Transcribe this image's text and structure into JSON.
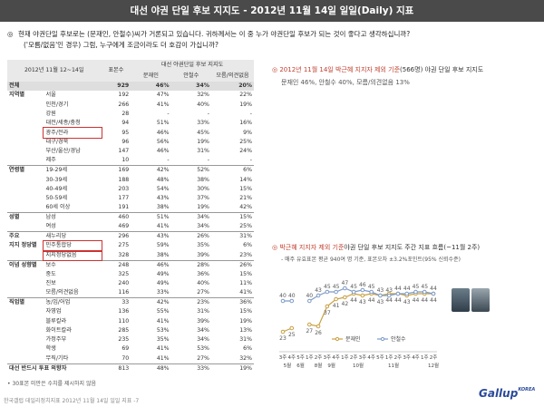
{
  "title": "대선 야권 단일 후보 지지도 - 2012년 11월 14일 일일(Daily) 지표",
  "question": {
    "bullet": "◎",
    "line1": "현재 야권단일 후보로는 (문재인, 안철수)씨가 거론되고 있습니다. 귀하께서는 이 중 누가 야권단일 후보가 되는 것이 좋다고 생각하십니까?",
    "line2": "('모름/없음'인 경우) 그럼, 누구에게 조금이라도 더 호감이 가십니까?"
  },
  "table": {
    "period": "2012년 11월 12~14일",
    "col_n": "표본수",
    "col_group": "대선 야권단일 후보 지지도",
    "cols": [
      "문재인",
      "안철수",
      "모름/의견없음"
    ],
    "rows": [
      {
        "g": "전체",
        "s": "",
        "n": "929",
        "v": [
          "46%",
          "34%",
          "20%"
        ],
        "total": true
      },
      {
        "g": "지역별",
        "s": "서울",
        "n": "192",
        "v": [
          "47%",
          "32%",
          "22%"
        ]
      },
      {
        "g": "",
        "s": "인천/경기",
        "n": "266",
        "v": [
          "41%",
          "40%",
          "19%"
        ]
      },
      {
        "g": "",
        "s": "강원",
        "n": "28",
        "v": [
          "-",
          "-",
          "-"
        ]
      },
      {
        "g": "",
        "s": "대전/세종/충청",
        "n": "94",
        "v": [
          "51%",
          "33%",
          "16%"
        ]
      },
      {
        "g": "",
        "s": "광주/전라",
        "n": "95",
        "v": [
          "46%",
          "45%",
          "9%"
        ],
        "box": true
      },
      {
        "g": "",
        "s": "대구/경북",
        "n": "96",
        "v": [
          "56%",
          "19%",
          "25%"
        ]
      },
      {
        "g": "",
        "s": "부산/울산/경남",
        "n": "147",
        "v": [
          "46%",
          "31%",
          "24%"
        ]
      },
      {
        "g": "",
        "s": "제주",
        "n": "10",
        "v": [
          "-",
          "-",
          "-"
        ],
        "sep": true
      },
      {
        "g": "연령별",
        "s": "19-29세",
        "n": "169",
        "v": [
          "42%",
          "52%",
          "6%"
        ]
      },
      {
        "g": "",
        "s": "30-39세",
        "n": "188",
        "v": [
          "48%",
          "38%",
          "14%"
        ]
      },
      {
        "g": "",
        "s": "40-49세",
        "n": "203",
        "v": [
          "54%",
          "30%",
          "15%"
        ]
      },
      {
        "g": "",
        "s": "50-59세",
        "n": "177",
        "v": [
          "43%",
          "37%",
          "21%"
        ]
      },
      {
        "g": "",
        "s": "60세 이상",
        "n": "191",
        "v": [
          "38%",
          "19%",
          "42%"
        ],
        "sep": true
      },
      {
        "g": "성별",
        "s": "남성",
        "n": "460",
        "v": [
          "51%",
          "34%",
          "15%"
        ]
      },
      {
        "g": "",
        "s": "여성",
        "n": "469",
        "v": [
          "41%",
          "34%",
          "25%"
        ],
        "sep": true
      },
      {
        "g": "주요",
        "s": "새누리당",
        "n": "296",
        "v": [
          "43%",
          "26%",
          "31%"
        ]
      },
      {
        "g": "지지 정당별",
        "s": "민주통합당",
        "n": "275",
        "v": [
          "59%",
          "35%",
          "6%"
        ],
        "box": true
      },
      {
        "g": "",
        "s": "지지정당없음",
        "n": "328",
        "v": [
          "38%",
          "39%",
          "23%"
        ],
        "box": true,
        "sep": true
      },
      {
        "g": "이념 성향별",
        "s": "보수",
        "n": "248",
        "v": [
          "46%",
          "28%",
          "26%"
        ]
      },
      {
        "g": "",
        "s": "중도",
        "n": "325",
        "v": [
          "49%",
          "36%",
          "15%"
        ]
      },
      {
        "g": "",
        "s": "진보",
        "n": "240",
        "v": [
          "49%",
          "40%",
          "11%"
        ]
      },
      {
        "g": "",
        "s": "모름/의견없음",
        "n": "116",
        "v": [
          "33%",
          "27%",
          "41%"
        ],
        "sep": true
      },
      {
        "g": "직업별",
        "s": "농/임/어업",
        "n": "33",
        "v": [
          "42%",
          "23%",
          "36%"
        ]
      },
      {
        "g": "",
        "s": "자영업",
        "n": "136",
        "v": [
          "55%",
          "31%",
          "15%"
        ]
      },
      {
        "g": "",
        "s": "블루칼라",
        "n": "110",
        "v": [
          "41%",
          "39%",
          "19%"
        ]
      },
      {
        "g": "",
        "s": "화이트칼라",
        "n": "285",
        "v": [
          "53%",
          "34%",
          "13%"
        ]
      },
      {
        "g": "",
        "s": "가정주부",
        "n": "235",
        "v": [
          "35%",
          "34%",
          "31%"
        ]
      },
      {
        "g": "",
        "s": "학생",
        "n": "69",
        "v": [
          "41%",
          "53%",
          "6%"
        ]
      },
      {
        "g": "",
        "s": "무직/기타",
        "n": "70",
        "v": [
          "41%",
          "27%",
          "32%"
        ],
        "sep": true
      },
      {
        "g": "대선 반드시 투표 의향자",
        "s": "",
        "n": "813",
        "v": [
          "48%",
          "33%",
          "19%"
        ],
        "wide": true
      }
    ]
  },
  "footnote": "• 30표본 미만은 수치를 제시하지 않음",
  "source": "한국갤럽 데일리정치지표 2012년 11월 14일 일일 지표 -7",
  "panel1": {
    "title_red": "◎ 2012년 11월 14일 박근혜 지지자 제외 기준",
    "title_rest": "(566명) 야권 단일 후보 지지도",
    "summary": "문재인 46%, 안철수 40%, 모름/의견없음 13%"
  },
  "panel2": {
    "title_red": "◎ 박근혜 지지자 제외 기준",
    "title_rest": "야권 단일 후보 지지도 주간 지표 흐름(~11월 2주)",
    "subtitle": "- 매주 유효표본 평균 940여 명 기준, 표본오차 ±3.2%포인트(95% 신뢰수준)"
  },
  "logo": {
    "text": "Gallup",
    "small": "KOREA"
  },
  "chart_data": {
    "type": "line",
    "x": [
      "3주",
      "4주",
      "5주",
      "1주",
      "2주",
      "3주",
      "4주",
      "1주",
      "2주",
      "3주",
      "4주",
      "5주",
      "1주",
      "2주",
      "3주",
      "4주",
      "1주",
      "2주"
    ],
    "month_labels": [
      {
        "label": "5월",
        "at": 0.5
      },
      {
        "label": "6월",
        "at": 2.0
      },
      {
        "label": "8월",
        "at": 4.0
      },
      {
        "label": "9월",
        "at": 5.5
      },
      {
        "label": "10월",
        "at": 8.5
      },
      {
        "label": "11월",
        "at": 12.5
      },
      {
        "label": "12월",
        "at": 17.0
      }
    ],
    "series": [
      {
        "name": "문재인",
        "color": "#c8a040",
        "values": [
          23,
          25,
          null,
          27,
          26,
          37,
          41,
          42,
          44,
          43,
          44,
          43,
          44,
          44,
          43,
          44,
          44,
          44
        ]
      },
      {
        "name": "안철수",
        "color": "#7d9bc8",
        "values": [
          40,
          40,
          null,
          40,
          43,
          45,
          45,
          47,
          45,
          46,
          45,
          43,
          43,
          44,
          44,
          45,
          45,
          44
        ]
      }
    ],
    "ylim": [
      15,
      55
    ],
    "grid": false,
    "legend": "bottom-center"
  }
}
